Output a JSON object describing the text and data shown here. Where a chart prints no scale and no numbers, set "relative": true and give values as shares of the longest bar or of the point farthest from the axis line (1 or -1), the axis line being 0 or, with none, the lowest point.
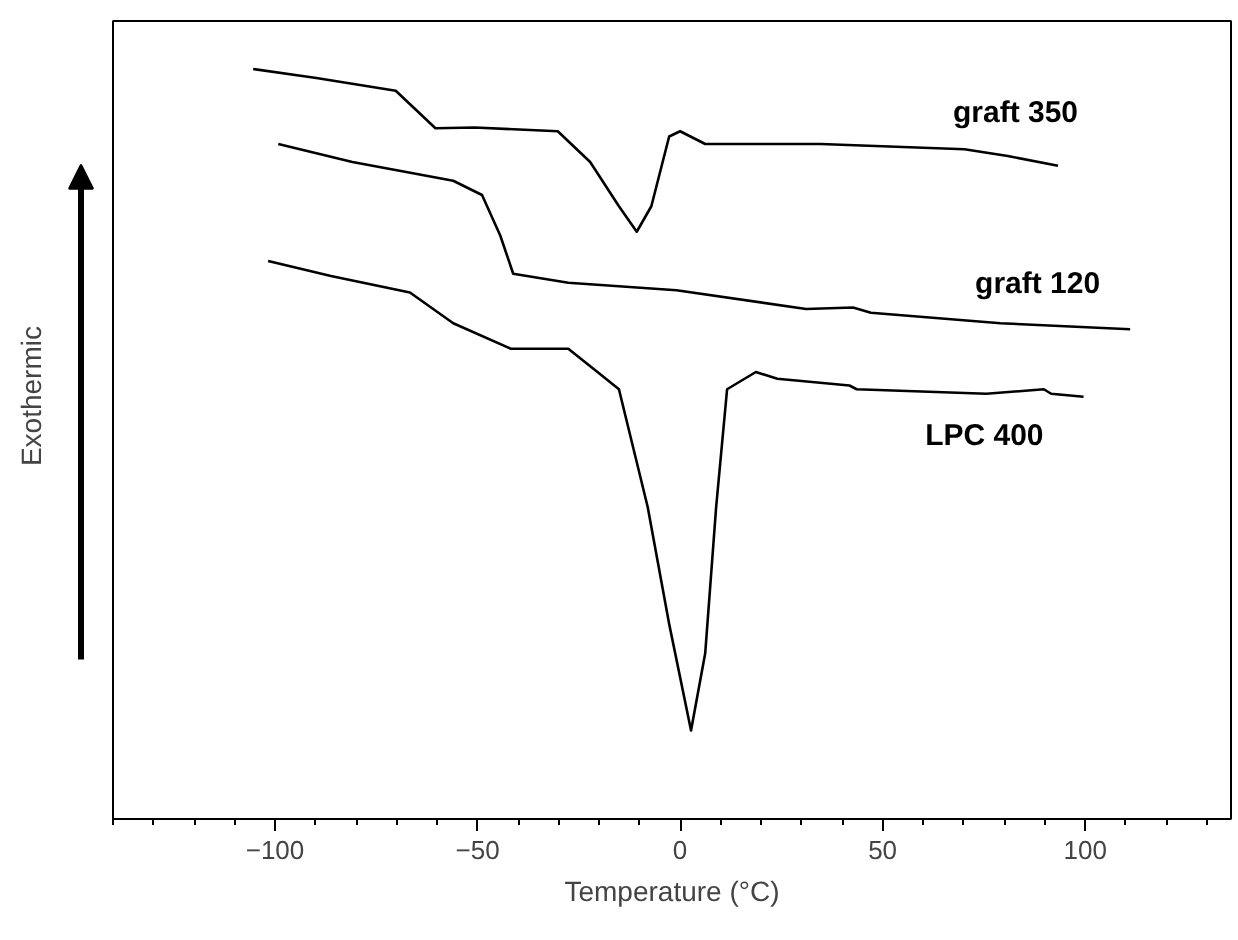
{
  "chart_data": {
    "type": "line",
    "relative": true,
    "xlabel": "Temperature (°C)",
    "ylabel": "Exothermic",
    "xlim": [
      -140,
      136
    ],
    "xticks": [
      -100,
      -50,
      0,
      50,
      100
    ],
    "grid": false,
    "marker": "none",
    "line_style": "solid",
    "series": [
      {
        "name": "graft 350",
        "color": "#000000",
        "x": [
          -105.4,
          -89.8,
          -70.2,
          -64.9,
          -60.4,
          -50.7,
          -30.2,
          -22.2,
          -15.1,
          -10.7,
          -7.1,
          -2.7,
          0,
          6.2,
          34.7,
          70.2,
          80.9,
          93.3
        ],
        "values": [
          1.0,
          0.988,
          0.971,
          0.944,
          0.921,
          0.922,
          0.917,
          0.876,
          0.817,
          0.783,
          0.817,
          0.91,
          0.917,
          0.9,
          0.9,
          0.893,
          0.884,
          0.871
        ]
      },
      {
        "name": "graft 120",
        "color": "#000000",
        "x": [
          -99.2,
          -80.9,
          -56,
          -48.9,
          -44.4,
          -41.2,
          -27.6,
          -0.9,
          31.1,
          42.7,
          47.1,
          79.1,
          111.1
        ],
        "values": [
          0.9,
          0.876,
          0.851,
          0.832,
          0.778,
          0.727,
          0.715,
          0.705,
          0.68,
          0.682,
          0.675,
          0.661,
          0.653
        ]
      },
      {
        "name": "LPC 400",
        "color": "#000000",
        "x": [
          -101.7,
          -86.2,
          -66.7,
          -56,
          -41.8,
          -27.6,
          -20.4,
          -15.1,
          -8,
          -2.7,
          2.7,
          6.2,
          8.9,
          11.6,
          18.7,
          24,
          41.8,
          43.6,
          75.6,
          89.8,
          91.6,
          99.6
        ],
        "values": [
          0.744,
          0.724,
          0.702,
          0.661,
          0.627,
          0.627,
          0.596,
          0.573,
          0.416,
          0.26,
          0.118,
          0.221,
          0.416,
          0.573,
          0.596,
          0.587,
          0.578,
          0.573,
          0.567,
          0.573,
          0.567,
          0.563
        ]
      }
    ]
  }
}
